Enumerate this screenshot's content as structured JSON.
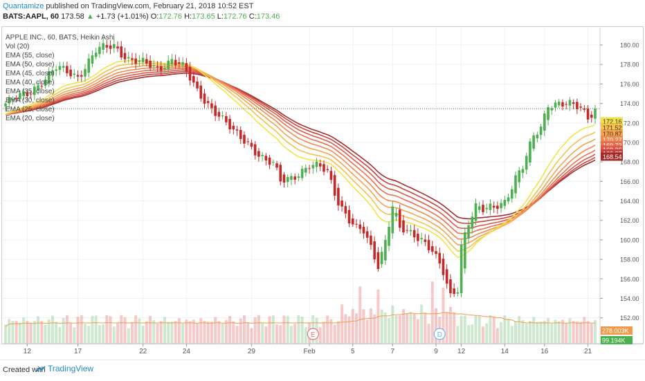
{
  "header": {
    "publisher": "Quantamize",
    "published_text": "published on TradingView.com, February 21, 2018 10:52 EST",
    "symbol": "BATS:AAPL, 60",
    "last": "173.58",
    "change_arrow": "▲",
    "change": "+1.73 (+1.01%)",
    "o_label": "O:",
    "o_value": "172.76",
    "h_label": "H:",
    "h_value": "173.65",
    "l_label": "L:",
    "l_value": "172.76",
    "c_label": "C:",
    "c_value": "173.46"
  },
  "legend": {
    "title": "APPLE INC., 60, BATS, Heikin Ashi",
    "items": [
      "Vol (20)",
      "EMA (55, close)",
      "EMA (50, close)",
      "EMA (45, close)",
      "EMA (40, close)",
      "EMA (35, close)",
      "EMA (30, close)",
      "EMA (25, close)",
      "EMA (20, close)"
    ]
  },
  "footer": {
    "created_with": "Created with",
    "brand": "TradingView"
  },
  "colors": {
    "up": "#4caf50",
    "down": "#c62828",
    "ema_20": "#f4e14a",
    "ema_25": "#f5c04c",
    "ema_30": "#f3a34e",
    "ema_35": "#ef8a4f",
    "ema_40": "#e8704d",
    "ema_45": "#dc5847",
    "ema_50": "#c9423d",
    "ema_55": "#a52a2a",
    "vol_ma": "#ef9a4a",
    "current_price_line": "#2e7d32"
  },
  "chart_data": {
    "type": "candlestick",
    "title": "APPLE INC., 60, BATS, Heikin Ashi",
    "y_axis": {
      "min": 151,
      "max": 181,
      "ticks": [
        "152.00",
        "154.00",
        "156.00",
        "158.00",
        "160.00",
        "162.00",
        "164.00",
        "166.00",
        "168.00",
        "170.00",
        "172.00",
        "174.00",
        "176.00",
        "178.00",
        "180.00"
      ],
      "tick_values": [
        152,
        154,
        156,
        158,
        160,
        162,
        164,
        166,
        168,
        170,
        172,
        174,
        176,
        178,
        180
      ]
    },
    "x_axis": {
      "ticks": [
        "12",
        "17",
        "22",
        "24",
        "29",
        "Feb",
        "5",
        "7",
        "9",
        "12",
        "14",
        "16",
        "21"
      ],
      "tick_index": [
        6,
        20,
        38,
        50,
        68,
        84,
        96,
        107,
        119,
        126,
        138,
        149,
        161
      ]
    },
    "current_price": 173.46,
    "price_labels": [
      {
        "text": "172.16",
        "value": 172.16,
        "color": "#f4e14a"
      },
      {
        "text": "171.52",
        "value": 171.52,
        "color": "#f5c04c"
      },
      {
        "text": "170.87",
        "value": 170.87,
        "color": "#f3a34e"
      },
      {
        "text": "170.27",
        "value": 170.27,
        "color": "#ef8a4f"
      },
      {
        "text": "169.73",
        "value": 169.73,
        "color": "#e8704d"
      },
      {
        "text": "169.26",
        "value": 169.26,
        "color": "#dc5847"
      },
      {
        "text": "168.87",
        "value": 168.87,
        "color": "#c9423d"
      },
      {
        "text": "168.54",
        "value": 168.54,
        "color": "#a52a2a"
      }
    ],
    "volume_labels": [
      {
        "text": "278.003K",
        "color": "#ef9a4a"
      },
      {
        "text": "99.194K",
        "color": "#4caf50"
      }
    ],
    "event_markers": [
      {
        "label": "E",
        "index": 85,
        "color": "#e57373"
      },
      {
        "label": "D",
        "index": 120,
        "color": "#64b5f6"
      }
    ],
    "close_anchors": [
      [
        0,
        174.0
      ],
      [
        6,
        175.0
      ],
      [
        10,
        176.3
      ],
      [
        14,
        177.6
      ],
      [
        20,
        176.8
      ],
      [
        25,
        179.4
      ],
      [
        30,
        179.9
      ],
      [
        34,
        178.6
      ],
      [
        38,
        178.1
      ],
      [
        42,
        177.5
      ],
      [
        46,
        178.6
      ],
      [
        49,
        177.7
      ],
      [
        53,
        175.2
      ],
      [
        58,
        173.2
      ],
      [
        63,
        171.0
      ],
      [
        67,
        170.0
      ],
      [
        69,
        169.2
      ],
      [
        72,
        168.0
      ],
      [
        74,
        167.7
      ],
      [
        76,
        166.0
      ],
      [
        80,
        166.7
      ],
      [
        84,
        167.5
      ],
      [
        87,
        167.4
      ],
      [
        89,
        167.0
      ],
      [
        92,
        164.0
      ],
      [
        95,
        162.0
      ],
      [
        97,
        161.0
      ],
      [
        99,
        160.8
      ],
      [
        101,
        159.2
      ],
      [
        103,
        157.5
      ],
      [
        105,
        160.0
      ],
      [
        107,
        163.5
      ],
      [
        109,
        161.0
      ],
      [
        112,
        160.6
      ],
      [
        115,
        160.2
      ],
      [
        118,
        159.0
      ],
      [
        121,
        156.5
      ],
      [
        123,
        154.0
      ],
      [
        125,
        155.0
      ],
      [
        126,
        159.5
      ],
      [
        128,
        162.0
      ],
      [
        130,
        163.5
      ],
      [
        132,
        163.0
      ],
      [
        135,
        163.2
      ],
      [
        138,
        164.0
      ],
      [
        141,
        166.5
      ],
      [
        143,
        167.5
      ],
      [
        146,
        170.5
      ],
      [
        148,
        171.5
      ],
      [
        150,
        174.0
      ],
      [
        153,
        174.1
      ],
      [
        156,
        173.8
      ],
      [
        159,
        173.4
      ],
      [
        161,
        172.6
      ],
      [
        163,
        173.5
      ]
    ],
    "ema_periods": [
      20,
      25,
      30,
      35,
      40,
      45,
      50,
      55
    ]
  }
}
